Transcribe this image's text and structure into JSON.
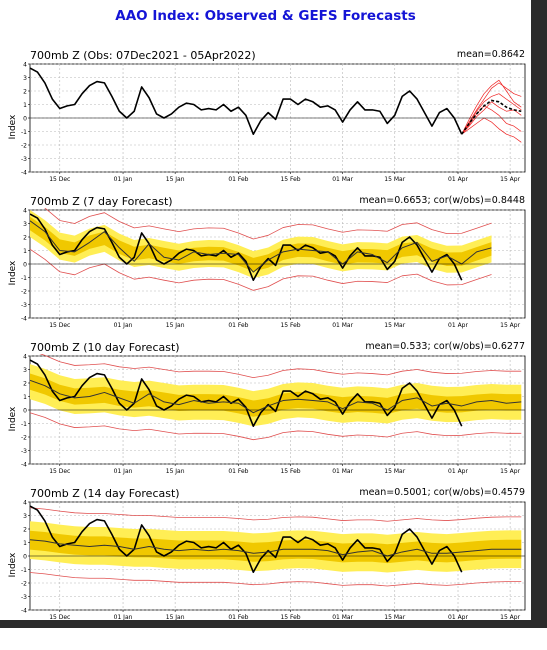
{
  "title": "AAO Index: Observed & GEFS Forecasts",
  "colors": {
    "title": "#1414d6",
    "observed": "#000000",
    "ens_mean": "#333333",
    "spread_outer": "#ffee55",
    "spread_inner": "#f0c800",
    "extremes": "#e05050",
    "forecast_members": "#ee2222"
  },
  "chart_data": [
    {
      "type": "line",
      "title": "700mb Z (Obs: 07Dec2021 - 05Apr2022)",
      "stats": "mean=0.8642",
      "ylabel": "Index",
      "xticks": [
        "15 Dec",
        "01 Jan",
        "15 Jan",
        "01 Feb",
        "15 Feb",
        "01 Mar",
        "15 Mar",
        "01 Apr",
        "15 Apr"
      ],
      "xtick_days": [
        8,
        25,
        39,
        56,
        70,
        84,
        98,
        115,
        129
      ],
      "xlim": [
        0,
        133
      ],
      "ylim": [
        -4,
        4
      ],
      "yticks": [
        -4,
        -3,
        -2,
        -1,
        0,
        1,
        2,
        3,
        4
      ],
      "grid": true,
      "series": [
        {
          "role": "observed",
          "x": [
            0,
            2,
            4,
            6,
            8,
            10,
            12,
            14,
            16,
            18,
            20,
            22,
            24,
            26,
            28,
            30,
            32,
            34,
            36,
            38,
            40,
            42,
            44,
            46,
            48,
            50,
            52,
            54,
            56,
            58,
            60,
            62,
            64,
            66,
            68,
            70,
            72,
            74,
            76,
            78,
            80,
            82,
            84,
            86,
            88,
            90,
            92,
            94,
            96,
            98,
            100,
            102,
            104,
            106,
            108,
            110,
            112,
            114,
            116
          ],
          "y": [
            3.7,
            3.4,
            2.6,
            1.4,
            0.7,
            0.9,
            1.0,
            1.8,
            2.4,
            2.7,
            2.6,
            1.6,
            0.5,
            0.0,
            0.5,
            2.3,
            1.5,
            0.3,
            0.0,
            0.3,
            0.8,
            1.1,
            1.0,
            0.6,
            0.7,
            0.6,
            1.0,
            0.5,
            0.8,
            0.2,
            -1.2,
            -0.2,
            0.4,
            -0.1,
            1.4,
            1.4,
            1.0,
            1.4,
            1.2,
            0.8,
            0.9,
            0.6,
            -0.3,
            0.6,
            1.2,
            0.6,
            0.6,
            0.5,
            -0.4,
            0.2,
            1.6,
            2.0,
            1.4,
            0.4,
            -0.6,
            0.4,
            0.7,
            0.0,
            -1.2
          ]
        },
        {
          "role": "forecast_members",
          "x": [
            116,
            118,
            120,
            122,
            124,
            126,
            128,
            130,
            132
          ],
          "y_members": [
            [
              -1.2,
              -0.3,
              0.6,
              1.4,
              2.2,
              2.6,
              2.2,
              1.8,
              1.6
            ],
            [
              -1.2,
              -0.6,
              0.1,
              0.6,
              1.2,
              0.8,
              0.5,
              0.6,
              0.2
            ],
            [
              -1.2,
              -0.8,
              -0.4,
              0.0,
              -0.3,
              -0.8,
              -1.2,
              -1.4,
              -1.8
            ],
            [
              -1.2,
              -0.1,
              0.9,
              1.8,
              2.4,
              2.8,
              2.0,
              1.2,
              0.8
            ],
            [
              -1.2,
              -0.5,
              0.3,
              0.9,
              0.6,
              0.2,
              -0.4,
              -0.6,
              -1.0
            ],
            [
              -1.2,
              -0.4,
              0.5,
              1.2,
              1.6,
              1.8,
              1.4,
              1.0,
              0.6
            ]
          ]
        },
        {
          "role": "ens_mean",
          "x": [
            116,
            118,
            120,
            122,
            124,
            126,
            128,
            130,
            132
          ],
          "y": [
            -1.2,
            -0.4,
            0.3,
            0.9,
            1.3,
            1.2,
            0.8,
            0.6,
            0.5
          ]
        }
      ]
    },
    {
      "type": "line",
      "title": "700mb Z (7 day Forecast)",
      "stats": "mean=0.6653; cor(w/obs)=0.8448",
      "ylabel": "Index",
      "xticks": [
        "15 Dec",
        "01 Jan",
        "15 Jan",
        "01 Feb",
        "15 Feb",
        "01 Mar",
        "15 Mar",
        "01 Apr",
        "15 Apr"
      ],
      "xtick_days": [
        8,
        25,
        39,
        56,
        70,
        84,
        98,
        115,
        129
      ],
      "xlim": [
        0,
        133
      ],
      "ylim": [
        -4,
        4
      ],
      "yticks": [
        -4,
        -3,
        -2,
        -1,
        0,
        1,
        2,
        3,
        4
      ],
      "grid": true,
      "series": [
        {
          "role": "observed",
          "x": [
            0,
            2,
            4,
            6,
            8,
            10,
            12,
            14,
            16,
            18,
            20,
            22,
            24,
            26,
            28,
            30,
            32,
            34,
            36,
            38,
            40,
            42,
            44,
            46,
            48,
            50,
            52,
            54,
            56,
            58,
            60,
            62,
            64,
            66,
            68,
            70,
            72,
            74,
            76,
            78,
            80,
            82,
            84,
            86,
            88,
            90,
            92,
            94,
            96,
            98,
            100,
            102,
            104,
            106,
            108,
            110,
            112,
            114,
            116
          ],
          "y": [
            3.7,
            3.4,
            2.6,
            1.4,
            0.7,
            0.9,
            1.0,
            1.8,
            2.4,
            2.7,
            2.6,
            1.6,
            0.5,
            0.0,
            0.5,
            2.3,
            1.5,
            0.3,
            0.0,
            0.3,
            0.8,
            1.1,
            1.0,
            0.6,
            0.7,
            0.6,
            1.0,
            0.5,
            0.8,
            0.2,
            -1.2,
            -0.2,
            0.4,
            -0.1,
            1.4,
            1.4,
            1.0,
            1.4,
            1.2,
            0.8,
            0.9,
            0.6,
            -0.3,
            0.6,
            1.2,
            0.6,
            0.6,
            0.5,
            -0.4,
            0.2,
            1.6,
            2.0,
            1.4,
            0.4,
            -0.6,
            0.4,
            0.7,
            0.0,
            -1.2
          ]
        },
        {
          "role": "ens_mean",
          "x": [
            0,
            4,
            8,
            12,
            16,
            20,
            24,
            28,
            32,
            36,
            40,
            44,
            48,
            52,
            56,
            60,
            64,
            68,
            72,
            76,
            80,
            84,
            88,
            92,
            96,
            100,
            104,
            108,
            112,
            116,
            120,
            124
          ],
          "y": [
            3.2,
            2.4,
            1.0,
            0.9,
            1.6,
            2.4,
            1.2,
            0.2,
            1.5,
            0.5,
            0.3,
            0.9,
            0.7,
            0.8,
            0.7,
            -0.6,
            0.3,
            0.9,
            1.1,
            1.0,
            0.9,
            0.0,
            0.9,
            0.7,
            0.1,
            1.2,
            1.6,
            0.2,
            0.6,
            0.0,
            0.9,
            1.2
          ]
        },
        {
          "role": "spread_outer",
          "halfwidth": 1.0
        },
        {
          "role": "spread_inner",
          "halfwidth": 0.5
        },
        {
          "role": "extremes",
          "halfwidth": 1.9
        }
      ]
    },
    {
      "type": "line",
      "title": "700mb Z (10 day Forecast)",
      "stats": "mean=0.533; cor(w/obs)=0.6277",
      "ylabel": "Index",
      "xticks": [
        "15 Dec",
        "01 Jan",
        "15 Jan",
        "01 Feb",
        "15 Feb",
        "01 Mar",
        "15 Mar",
        "01 Apr",
        "15 Apr"
      ],
      "xtick_days": [
        8,
        25,
        39,
        56,
        70,
        84,
        98,
        115,
        129
      ],
      "xlim": [
        0,
        133
      ],
      "ylim": [
        -4,
        4
      ],
      "yticks": [
        -4,
        -3,
        -2,
        -1,
        0,
        1,
        2,
        3,
        4
      ],
      "grid": true,
      "series": [
        {
          "role": "observed",
          "x": [
            0,
            2,
            4,
            6,
            8,
            10,
            12,
            14,
            16,
            18,
            20,
            22,
            24,
            26,
            28,
            30,
            32,
            34,
            36,
            38,
            40,
            42,
            44,
            46,
            48,
            50,
            52,
            54,
            56,
            58,
            60,
            62,
            64,
            66,
            68,
            70,
            72,
            74,
            76,
            78,
            80,
            82,
            84,
            86,
            88,
            90,
            92,
            94,
            96,
            98,
            100,
            102,
            104,
            106,
            108,
            110,
            112,
            114,
            116
          ],
          "y": [
            3.7,
            3.4,
            2.6,
            1.4,
            0.7,
            0.9,
            1.0,
            1.8,
            2.4,
            2.7,
            2.6,
            1.6,
            0.5,
            0.0,
            0.5,
            2.3,
            1.5,
            0.3,
            0.0,
            0.3,
            0.8,
            1.1,
            1.0,
            0.6,
            0.7,
            0.6,
            1.0,
            0.5,
            0.8,
            0.2,
            -1.2,
            -0.2,
            0.4,
            -0.1,
            1.4,
            1.4,
            1.0,
            1.4,
            1.2,
            0.8,
            0.9,
            0.6,
            -0.3,
            0.6,
            1.2,
            0.6,
            0.6,
            0.5,
            -0.4,
            0.2,
            1.6,
            2.0,
            1.4,
            0.4,
            -0.6,
            0.4,
            0.7,
            0.0,
            -1.2
          ]
        },
        {
          "role": "ens_mean",
          "x": [
            0,
            4,
            8,
            12,
            16,
            20,
            24,
            28,
            32,
            36,
            40,
            44,
            48,
            52,
            56,
            60,
            64,
            68,
            72,
            76,
            80,
            84,
            88,
            92,
            96,
            100,
            104,
            108,
            112,
            116,
            120,
            124,
            128,
            132
          ],
          "y": [
            2.2,
            1.8,
            1.2,
            0.9,
            1.0,
            1.3,
            0.9,
            0.5,
            1.2,
            0.6,
            0.4,
            0.7,
            0.5,
            0.6,
            0.5,
            -0.2,
            0.3,
            0.7,
            0.8,
            0.7,
            0.6,
            0.1,
            0.6,
            0.5,
            0.0,
            0.7,
            0.9,
            0.3,
            0.5,
            0.3,
            0.6,
            0.7,
            0.5,
            0.6
          ]
        },
        {
          "role": "spread_outer",
          "halfwidth": 1.3
        },
        {
          "role": "spread_inner",
          "halfwidth": 0.6
        },
        {
          "role": "extremes",
          "halfwidth": 2.3
        }
      ]
    },
    {
      "type": "line",
      "title": "700mb Z (14 day Forecast)",
      "stats": "mean=0.5001; cor(w/obs)=0.4579",
      "ylabel": "Index",
      "xticks": [
        "15 Dec",
        "01 Jan",
        "15 Jan",
        "01 Feb",
        "15 Feb",
        "01 Mar",
        "15 Mar",
        "01 Apr",
        "15 Apr"
      ],
      "xtick_days": [
        8,
        25,
        39,
        56,
        70,
        84,
        98,
        115,
        129
      ],
      "xlim": [
        0,
        133
      ],
      "ylim": [
        -4,
        4
      ],
      "yticks": [
        -4,
        -3,
        -2,
        -1,
        0,
        1,
        2,
        3,
        4
      ],
      "grid": true,
      "series": [
        {
          "role": "observed",
          "x": [
            0,
            2,
            4,
            6,
            8,
            10,
            12,
            14,
            16,
            18,
            20,
            22,
            24,
            26,
            28,
            30,
            32,
            34,
            36,
            38,
            40,
            42,
            44,
            46,
            48,
            50,
            52,
            54,
            56,
            58,
            60,
            62,
            64,
            66,
            68,
            70,
            72,
            74,
            76,
            78,
            80,
            82,
            84,
            86,
            88,
            90,
            92,
            94,
            96,
            98,
            100,
            102,
            104,
            106,
            108,
            110,
            112,
            114,
            116
          ],
          "y": [
            3.7,
            3.4,
            2.6,
            1.4,
            0.7,
            0.9,
            1.0,
            1.8,
            2.4,
            2.7,
            2.6,
            1.6,
            0.5,
            0.0,
            0.5,
            2.3,
            1.5,
            0.3,
            0.0,
            0.3,
            0.8,
            1.1,
            1.0,
            0.6,
            0.7,
            0.6,
            1.0,
            0.5,
            0.8,
            0.2,
            -1.2,
            -0.2,
            0.4,
            -0.1,
            1.4,
            1.4,
            1.0,
            1.4,
            1.2,
            0.8,
            0.9,
            0.6,
            -0.3,
            0.6,
            1.2,
            0.6,
            0.6,
            0.5,
            -0.4,
            0.2,
            1.6,
            2.0,
            1.4,
            0.4,
            -0.6,
            0.4,
            0.7,
            0.0,
            -1.2
          ]
        },
        {
          "role": "ens_mean",
          "x": [
            0,
            4,
            8,
            12,
            16,
            20,
            24,
            28,
            32,
            36,
            40,
            44,
            48,
            52,
            56,
            60,
            64,
            68,
            72,
            76,
            80,
            84,
            88,
            92,
            96,
            100,
            104,
            108,
            112,
            116,
            120,
            124,
            128,
            132
          ],
          "y": [
            1.2,
            1.1,
            0.9,
            0.8,
            0.7,
            0.8,
            0.7,
            0.5,
            0.7,
            0.5,
            0.4,
            0.5,
            0.4,
            0.5,
            0.4,
            0.2,
            0.3,
            0.5,
            0.5,
            0.5,
            0.4,
            0.1,
            0.3,
            0.4,
            0.0,
            0.3,
            0.5,
            0.2,
            0.2,
            0.3,
            0.4,
            0.5,
            0.5,
            0.5
          ]
        },
        {
          "role": "spread_outer",
          "halfwidth": 1.4
        },
        {
          "role": "spread_inner",
          "halfwidth": 0.7
        },
        {
          "role": "extremes",
          "halfwidth": 2.4
        }
      ]
    }
  ]
}
